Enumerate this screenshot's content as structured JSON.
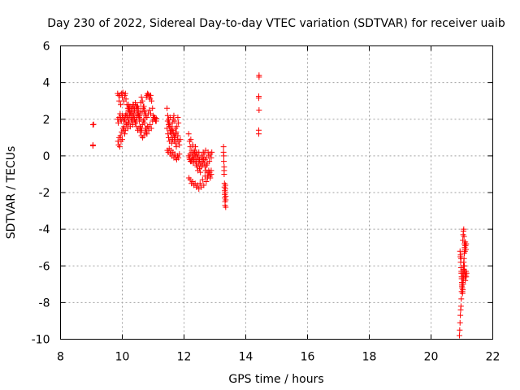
{
  "chart_data": {
    "type": "scatter",
    "title": "Day 230 of 2022, Sidereal Day-to-day VTEC variation (SDTVAR) for receiver uaib",
    "xlabel": "GPS time / hours",
    "ylabel": "SDTVAR / TECUs",
    "xlim": [
      8,
      22
    ],
    "ylim": [
      -10,
      6
    ],
    "xticks": [
      8,
      10,
      12,
      14,
      16,
      18,
      20,
      22
    ],
    "yticks": [
      -10,
      -8,
      -6,
      -4,
      -2,
      0,
      2,
      4,
      6
    ],
    "grid": true,
    "marker": "plus",
    "color": "#ff0000",
    "series": [
      {
        "name": "SDTVAR",
        "x": [
          9.05,
          9.05,
          9.05,
          9.07,
          9.85,
          9.88,
          9.9,
          9.92,
          9.95,
          9.97,
          10.0,
          10.02,
          10.05,
          10.08,
          10.1,
          10.12,
          10.15,
          10.18,
          10.2,
          10.22,
          10.25,
          10.28,
          10.3,
          10.32,
          10.35,
          10.38,
          10.4,
          10.42,
          10.45,
          10.48,
          10.5,
          10.52,
          10.55,
          10.58,
          10.6,
          10.62,
          10.65,
          10.68,
          10.7,
          10.72,
          10.75,
          10.78,
          10.8,
          10.82,
          10.85,
          10.88,
          10.9,
          10.92,
          10.95,
          10.98,
          11.0,
          11.02,
          11.05,
          11.08,
          11.1,
          9.85,
          9.87,
          9.9,
          9.93,
          9.95,
          9.97,
          10.0,
          10.03,
          10.05,
          10.08,
          10.1,
          10.12,
          10.15,
          10.18,
          10.2,
          10.23,
          10.25,
          10.28,
          10.3,
          10.33,
          10.35,
          10.38,
          10.4,
          10.42,
          10.45,
          10.48,
          10.5,
          10.53,
          10.55,
          10.58,
          10.6,
          10.63,
          10.65,
          10.68,
          10.7,
          10.72,
          10.75,
          10.78,
          10.8,
          10.83,
          9.86,
          9.9,
          9.94,
          9.98,
          10.02,
          10.06,
          10.1,
          10.14,
          10.18,
          10.22,
          10.26,
          10.3,
          10.34,
          10.38,
          10.42,
          10.46,
          10.5,
          10.54,
          10.58,
          10.62,
          10.66,
          10.7,
          10.74,
          10.78,
          10.82,
          10.86,
          10.9,
          10.94,
          10.98,
          11.02,
          11.06,
          11.1,
          9.88,
          9.92,
          9.96,
          10.0,
          10.04,
          10.08,
          10.12,
          10.16,
          10.2,
          10.24,
          10.28,
          10.32,
          10.36,
          10.4,
          10.44,
          10.48,
          10.52,
          10.56,
          10.6,
          10.64,
          10.68,
          10.72,
          10.76,
          10.8,
          10.84,
          10.88,
          10.92,
          11.45,
          11.47,
          11.5,
          11.52,
          11.55,
          11.57,
          11.6,
          11.62,
          11.65,
          11.67,
          11.7,
          11.72,
          11.75,
          11.77,
          11.8,
          11.82,
          11.45,
          11.48,
          11.5,
          11.53,
          11.55,
          11.58,
          11.6,
          11.63,
          11.65,
          11.68,
          11.7,
          11.73,
          11.75,
          11.78,
          11.8,
          11.83,
          11.85,
          11.88,
          11.46,
          11.49,
          11.52,
          11.55,
          11.58,
          11.61,
          11.64,
          11.67,
          11.7,
          11.73,
          11.76,
          11.79,
          11.82,
          11.85,
          11.47,
          11.5,
          11.53,
          11.56,
          11.59,
          11.62,
          11.65,
          11.68,
          11.71,
          11.74,
          12.15,
          12.18,
          12.2,
          12.22,
          12.25,
          12.28,
          12.3,
          12.32,
          12.35,
          12.38,
          12.4,
          12.42,
          12.45,
          12.48,
          12.5,
          12.52,
          12.55,
          12.58,
          12.6,
          12.62,
          12.65,
          12.68,
          12.7,
          12.72,
          12.75,
          12.78,
          12.8,
          12.82,
          12.85,
          12.88,
          12.9,
          12.15,
          12.18,
          12.2,
          12.23,
          12.25,
          12.28,
          12.3,
          12.33,
          12.35,
          12.38,
          12.4,
          12.43,
          12.45,
          12.48,
          12.5,
          12.53,
          12.55,
          12.58,
          12.6,
          12.63,
          12.65,
          12.68,
          12.7,
          12.73,
          12.75,
          12.78,
          12.8,
          12.83,
          12.85,
          12.88,
          12.16,
          12.2,
          12.24,
          12.28,
          12.32,
          12.36,
          12.4,
          12.44,
          12.48,
          12.52,
          12.56,
          12.6,
          12.64,
          12.68,
          12.72,
          12.76,
          12.8,
          12.84,
          12.88,
          12.17,
          12.21,
          12.25,
          12.29,
          12.33,
          12.37,
          12.41,
          12.45,
          12.49,
          13.28,
          13.28,
          13.29,
          13.29,
          13.3,
          13.3,
          13.3,
          13.31,
          13.31,
          13.32,
          13.32,
          13.32,
          13.33,
          13.33,
          13.33,
          13.34,
          13.34,
          13.35,
          13.35,
          13.35,
          14.43,
          14.43,
          14.42,
          14.42,
          14.43,
          14.42,
          14.42,
          20.92,
          20.93,
          20.94,
          20.95,
          20.96,
          20.97,
          20.98,
          20.99,
          21.0,
          21.01,
          21.02,
          21.03,
          21.04,
          21.05,
          21.06,
          21.07,
          21.08,
          21.09,
          21.1,
          21.11,
          21.12,
          21.13,
          21.14,
          20.94,
          20.95,
          20.96,
          20.97,
          20.98,
          20.99,
          21.0,
          21.01,
          21.02,
          21.03,
          21.04,
          21.05,
          21.06,
          21.07,
          21.08,
          21.09,
          21.1,
          21.11,
          21.12,
          21.13,
          21.14,
          21.15,
          20.96,
          20.97,
          20.98,
          20.99,
          21.0,
          21.01,
          21.02,
          21.03,
          21.04,
          21.05,
          21.06,
          21.07,
          21.08,
          21.09,
          21.1
        ],
        "y": [
          1.7,
          0.6,
          0.55,
          1.72,
          3.4,
          3.3,
          3.0,
          3.3,
          2.8,
          3.4,
          3.2,
          3.45,
          3.0,
          3.3,
          3.4,
          3.1,
          2.8,
          2.6,
          2.8,
          2.6,
          2.7,
          2.3,
          2.6,
          2.4,
          2.8,
          2.5,
          2.6,
          2.9,
          2.7,
          2.5,
          2.7,
          2.3,
          2.1,
          2.4,
          2.9,
          3.2,
          3.0,
          2.6,
          2.7,
          2.4,
          2.3,
          3.2,
          3.3,
          3.4,
          3.35,
          3.2,
          3.1,
          3.3,
          3.0,
          2.6,
          2.2,
          2.0,
          2.1,
          1.9,
          2.05,
          2.0,
          1.8,
          2.1,
          2.3,
          2.0,
          1.9,
          2.2,
          2.1,
          1.9,
          2.0,
          2.2,
          2.3,
          2.1,
          1.8,
          2.0,
          2.2,
          2.4,
          2.1,
          1.9,
          2.0,
          2.2,
          2.3,
          2.0,
          1.8,
          1.9,
          2.1,
          2.3,
          2.2,
          1.9,
          1.6,
          1.5,
          1.4,
          1.7,
          1.9,
          2.0,
          1.8,
          1.5,
          1.3,
          1.2,
          1.6,
          0.8,
          1.0,
          1.1,
          1.3,
          1.5,
          1.6,
          1.4,
          1.7,
          1.5,
          1.8,
          1.6,
          1.9,
          1.7,
          2.0,
          1.8,
          1.6,
          1.4,
          1.5,
          1.3,
          1.1,
          1.0,
          1.1,
          1.3,
          1.5,
          1.6,
          1.4,
          1.7,
          1.5,
          1.9,
          2.1,
          2.0,
          1.9,
          0.6,
          0.5,
          0.8,
          0.9,
          1.4,
          1.2,
          1.8,
          2.2,
          2.5,
          2.4,
          2.2,
          2.6,
          2.8,
          2.5,
          2.3,
          2.7,
          2.6,
          2.2,
          2.0,
          2.4,
          2.7,
          2.5,
          2.2,
          2.1,
          2.3,
          2.5,
          2.3,
          2.6,
          2.2,
          2.0,
          1.8,
          2.1,
          1.6,
          1.4,
          1.8,
          2.0,
          2.2,
          1.9,
          1.5,
          1.3,
          1.6,
          2.1,
          1.8,
          1.5,
          1.2,
          1.0,
          0.8,
          1.3,
          1.0,
          0.7,
          0.9,
          1.2,
          0.8,
          1.1,
          0.7,
          0.5,
          0.9,
          1.1,
          0.8,
          0.6,
          0.9,
          0.3,
          0.2,
          0.4,
          0.1,
          0.3,
          0.0,
          0.2,
          -0.1,
          0.1,
          -0.1,
          -0.2,
          0.0,
          -0.1,
          0.1,
          1.9,
          1.7,
          1.6,
          1.4,
          1.2,
          1.4,
          1.3,
          1.1,
          1.0,
          1.2,
          1.2,
          0.8,
          0.5,
          0.9,
          0.3,
          0.6,
          0.1,
          -0.2,
          0.2,
          0.0,
          -0.3,
          0.1,
          -0.1,
          0.2,
          -0.2,
          -0.4,
          0.0,
          -0.3,
          -0.1,
          0.2,
          0.1,
          -0.2,
          0.3,
          -0.1,
          -0.4,
          0.2,
          0.0,
          -0.3,
          0.1,
          -0.1,
          0.2,
          0.0,
          -0.2,
          0.1,
          -0.3,
          0.2,
          -0.1,
          -0.4,
          -0.2,
          0.1,
          -0.3,
          -0.5,
          -0.6,
          -0.8,
          -0.4,
          -0.7,
          -0.9,
          -0.6,
          -0.3,
          -0.5,
          -0.2,
          -0.4,
          -0.6,
          -0.8,
          -0.5,
          -0.9,
          -1.1,
          -0.8,
          -0.9,
          -1.2,
          -1.0,
          -1.2,
          -1.3,
          -1.5,
          -1.4,
          -1.6,
          -1.5,
          -1.7,
          -1.6,
          -1.8,
          -1.5,
          -1.7,
          -1.3,
          -1.6,
          -1.1,
          -1.4,
          -1.2,
          -0.9,
          -1.1,
          -0.8,
          -0.1,
          -0.3,
          -0.2,
          0.0,
          0.3,
          0.5,
          0.2,
          -0.1,
          -0.2,
          0.5,
          0.2,
          0.0,
          -0.3,
          -0.6,
          -0.8,
          -1.0,
          -1.5,
          -1.7,
          -1.9,
          -2.1,
          -2.3,
          -2.5,
          -2.7,
          -2.0,
          -1.8,
          -1.6,
          -2.2,
          -2.4,
          -2.8,
          4.4,
          4.3,
          3.25,
          3.15,
          2.5,
          1.4,
          1.2,
          -9.8,
          -9.5,
          -9.1,
          -8.7,
          -8.4,
          -8.2,
          -7.8,
          -7.4,
          -7.1,
          -6.9,
          -6.7,
          -6.4,
          -6.2,
          -6.0,
          -5.8,
          -5.6,
          -5.3,
          -5.1,
          -4.9,
          -4.7,
          -4.9,
          -5.1,
          -4.8,
          -5.2,
          -5.5,
          -5.8,
          -6.1,
          -6.4,
          -6.6,
          -6.9,
          -7.2,
          -7.5,
          -7.3,
          -7.0,
          -6.7,
          -6.5,
          -6.2,
          -6.0,
          -6.3,
          -6.6,
          -6.8,
          -6.5,
          -6.3,
          -6.6,
          -6.4,
          -5.4,
          -5.6,
          -6.3,
          -6.7,
          -7.0,
          -7.2,
          -7.4,
          -4.6,
          -4.3,
          -4.1,
          -4.0,
          -4.4,
          -4.8,
          -5.0,
          -5.2
        ]
      }
    ]
  }
}
